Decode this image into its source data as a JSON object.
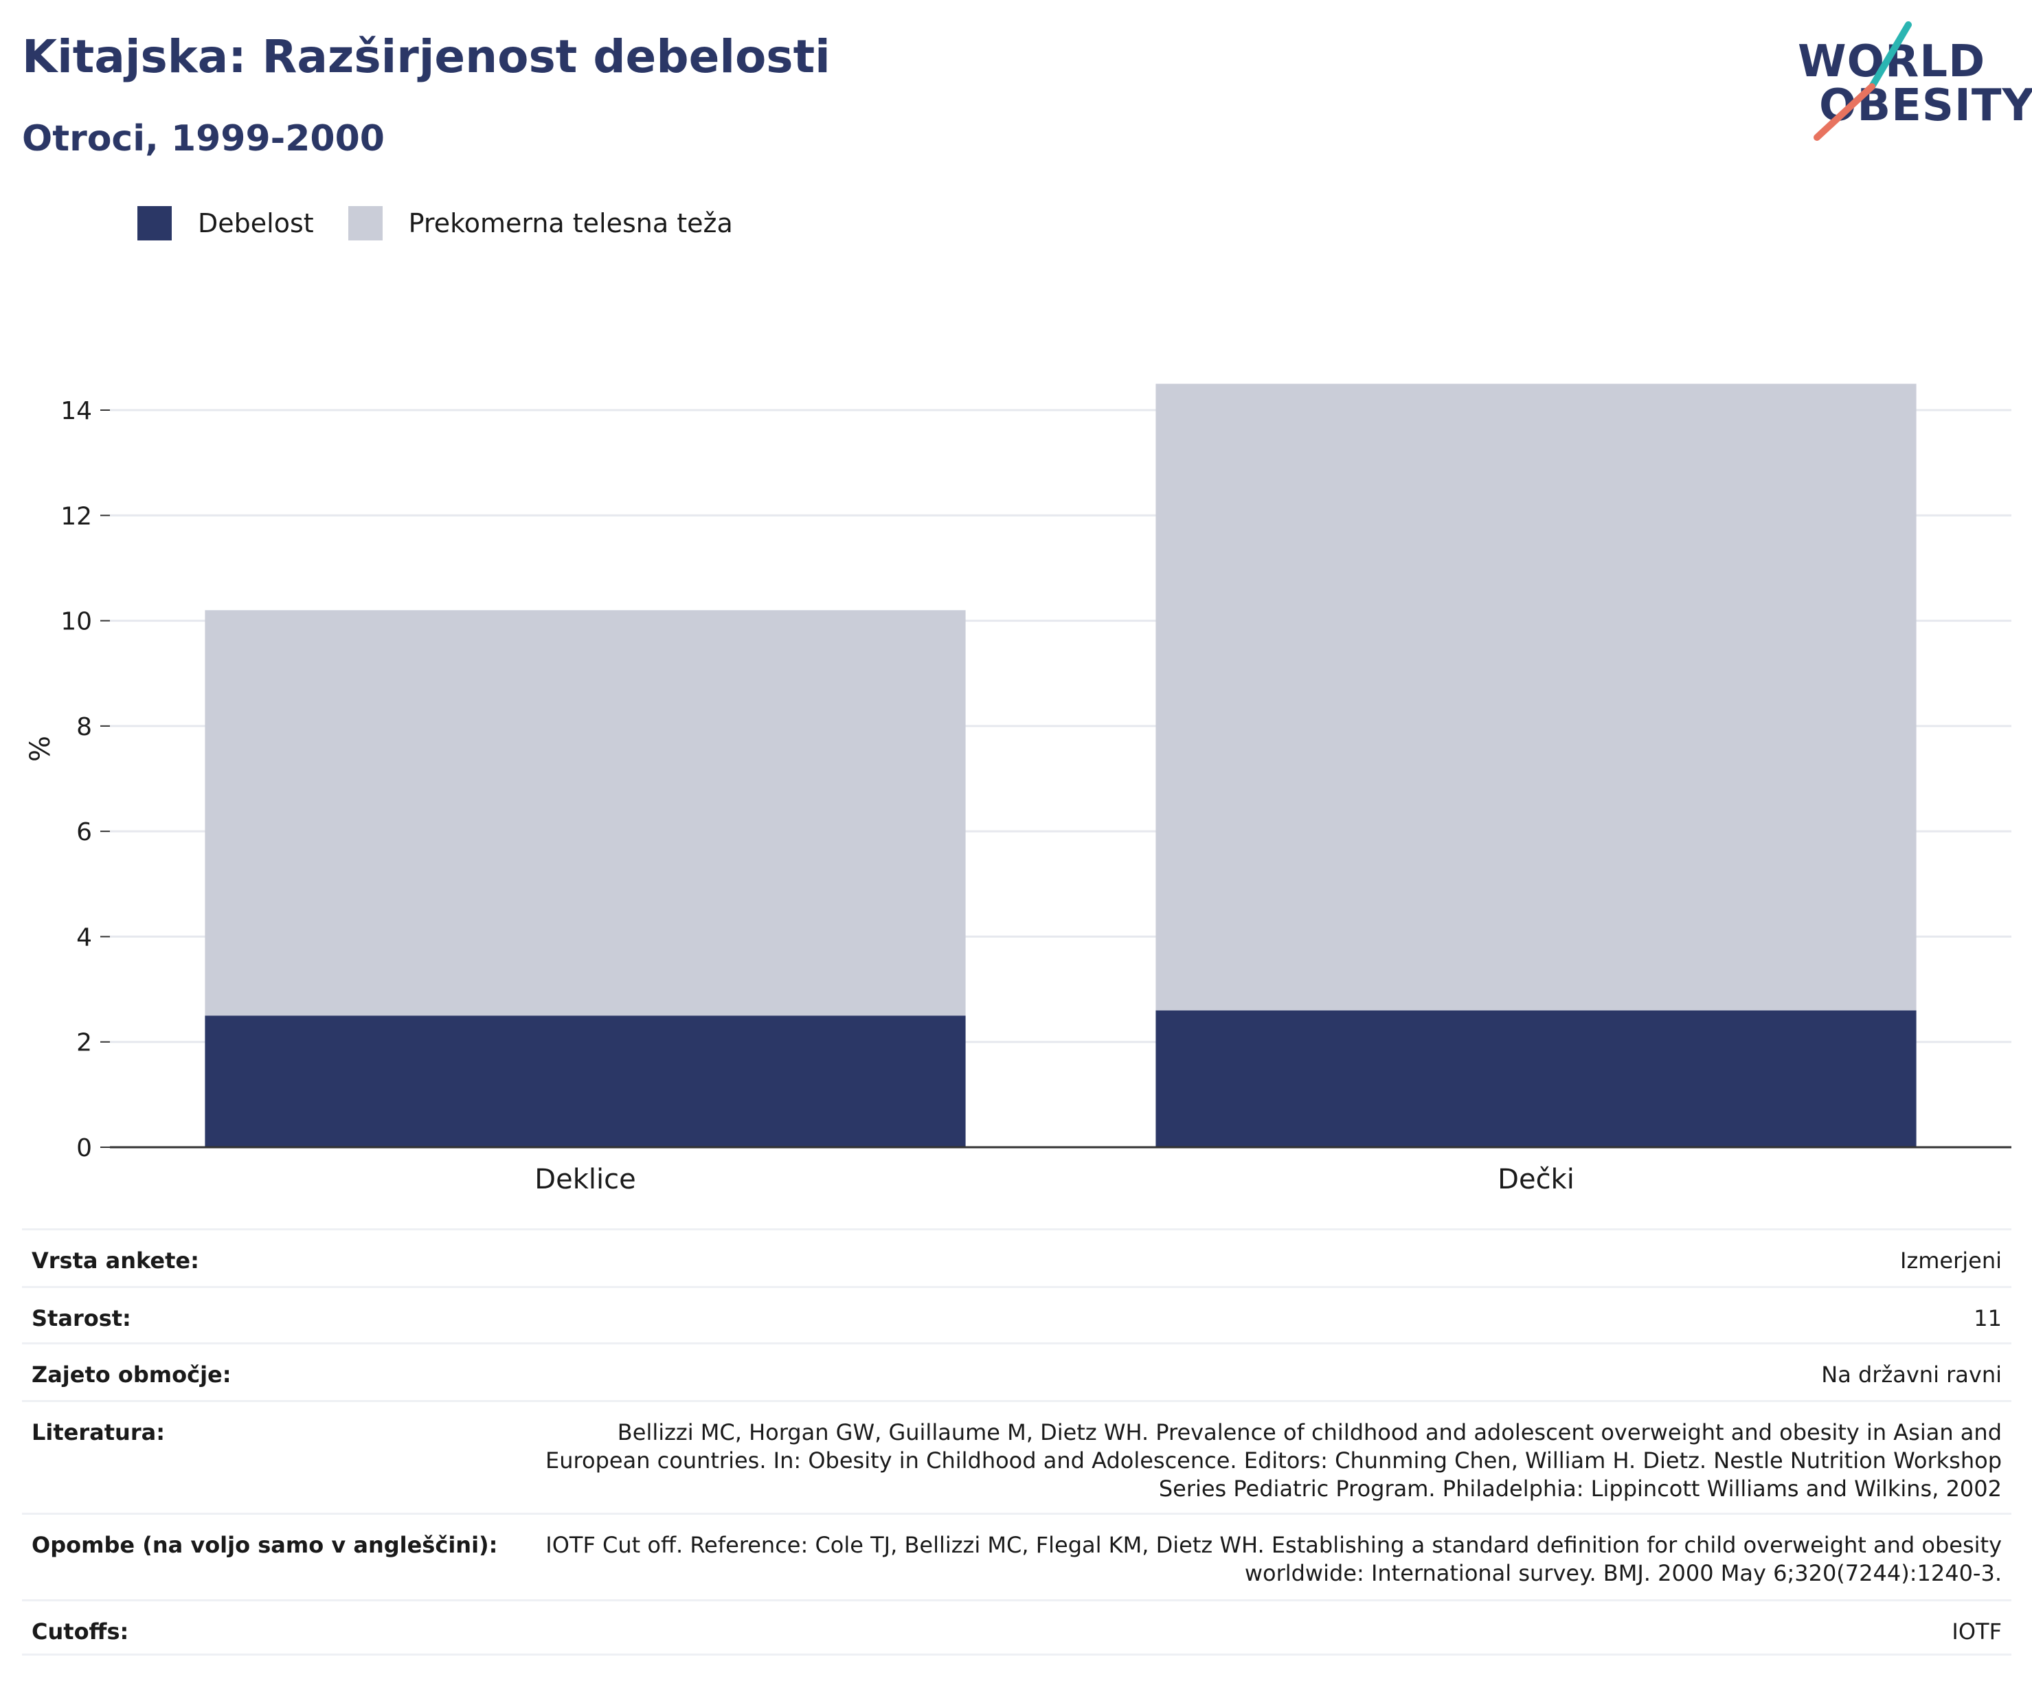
{
  "header": {
    "title": "Kitajska: Razširjenost debelosti",
    "subtitle": "Otroci, 1999-2000"
  },
  "logo": {
    "line1": "WORLD",
    "line2": "OBESITY",
    "accent_colors": [
      "#2bb5b2",
      "#e8735f"
    ]
  },
  "legend": [
    {
      "label": "Debelost",
      "color": "#2b3766"
    },
    {
      "label": "Prekomerna telesna teža",
      "color": "#cacdd8"
    }
  ],
  "chart_data": {
    "type": "bar",
    "stacked": true,
    "categories": [
      "Deklice",
      "Dečki"
    ],
    "series": [
      {
        "name": "Debelost",
        "values": [
          2.5,
          2.6
        ],
        "color": "#2b3766"
      },
      {
        "name": "Prekomerna telesna teža",
        "values": [
          7.7,
          11.9
        ],
        "color": "#cacdd8"
      }
    ],
    "ylabel": "%",
    "ylim": [
      0,
      14.5
    ],
    "yticks": [
      0,
      2,
      4,
      6,
      8,
      10,
      12,
      14
    ],
    "grid": true
  },
  "meta": [
    {
      "key": "Vrsta ankete:",
      "value": [
        "Izmerjeni"
      ]
    },
    {
      "key": "Starost:",
      "value": [
        "11"
      ]
    },
    {
      "key": "Zajeto območje:",
      "value": [
        "Na državni ravni"
      ]
    },
    {
      "key": "Literatura:",
      "value": [
        "Bellizzi MC, Horgan GW, Guillaume M, Dietz WH. Prevalence of childhood and adolescent overweight and obesity in Asian and",
        "European countries. In: Obesity in Childhood and Adolescence. Editors: Chunming Chen, William H. Dietz. Nestle Nutrition Workshop",
        "Series Pediatric Program. Philadelphia: Lippincott Williams and Wilkins, 2002"
      ]
    },
    {
      "key": "Opombe (na voljo samo v angleščini):",
      "value": [
        "IOTF Cut off. Reference: Cole TJ, Bellizzi MC, Flegal KM, Dietz WH. Establishing a standard definition for child overweight and obesity",
        "worldwide: International survey. BMJ. 2000 May 6;320(7244):1240-3."
      ]
    },
    {
      "key": "Cutoffs:",
      "value": [
        "IOTF"
      ]
    }
  ]
}
